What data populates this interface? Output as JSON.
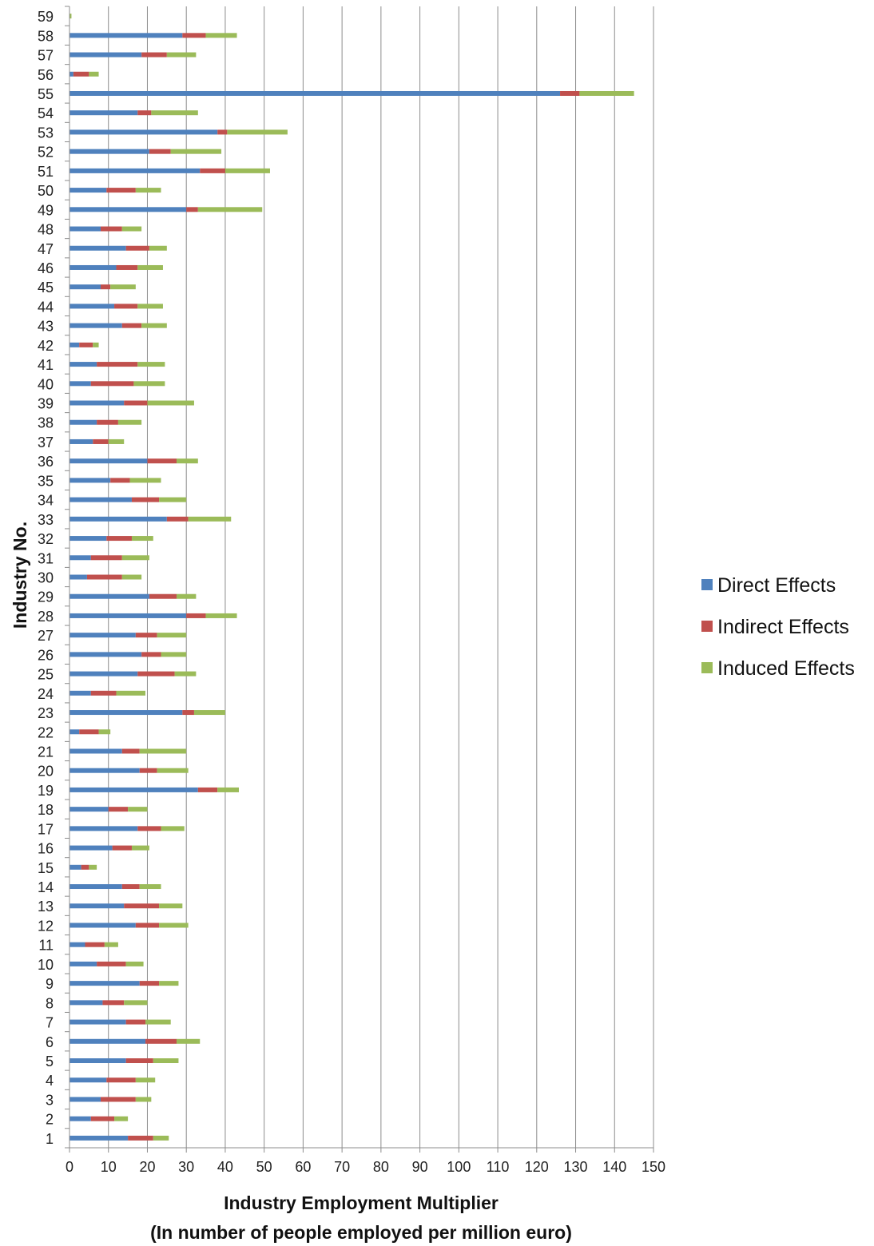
{
  "chart_data": {
    "type": "bar",
    "orientation": "horizontal",
    "stacked": true,
    "xlabel": "Industry Employment Multiplier",
    "xlabel_sub": "(In number of people employed per million euro)",
    "ylabel": "Industry No.",
    "xlim": [
      0,
      150
    ],
    "x_ticks": [
      0,
      10,
      20,
      30,
      40,
      50,
      60,
      70,
      80,
      90,
      100,
      110,
      120,
      130,
      140,
      150
    ],
    "grid": "vertical",
    "legend_position": "right",
    "categories": [
      "1",
      "2",
      "3",
      "4",
      "5",
      "6",
      "7",
      "8",
      "9",
      "10",
      "11",
      "12",
      "13",
      "14",
      "15",
      "16",
      "17",
      "18",
      "19",
      "20",
      "21",
      "22",
      "23",
      "24",
      "25",
      "26",
      "27",
      "28",
      "29",
      "30",
      "31",
      "32",
      "33",
      "34",
      "35",
      "36",
      "37",
      "38",
      "39",
      "40",
      "41",
      "42",
      "43",
      "44",
      "45",
      "46",
      "47",
      "48",
      "49",
      "50",
      "51",
      "52",
      "53",
      "54",
      "55",
      "56",
      "57",
      "58",
      "59"
    ],
    "series": [
      {
        "name": "Direct Effects",
        "color": "#4F81BD",
        "values": [
          15,
          5.5,
          8,
          9.5,
          14.5,
          19.5,
          14.5,
          8.5,
          18,
          7,
          4,
          17,
          14,
          13.5,
          3,
          11,
          17.5,
          10,
          33,
          18,
          13.5,
          2.5,
          29,
          5.5,
          17.5,
          18.5,
          17,
          30,
          20.5,
          4.5,
          5.5,
          9.5,
          25,
          16,
          10.5,
          20,
          6,
          7,
          14,
          5.5,
          7,
          2.5,
          13.5,
          11.5,
          8,
          12,
          14.5,
          8,
          30,
          9.5,
          33.5,
          20.5,
          38,
          17.5,
          126,
          1,
          18.5,
          29,
          0
        ]
      },
      {
        "name": "Indirect Effects",
        "color": "#C0504D",
        "values": [
          6.5,
          6,
          9,
          7.5,
          7,
          8,
          5,
          5.5,
          5,
          7.5,
          5,
          6,
          9,
          4.5,
          2,
          5,
          6,
          5,
          5,
          4.5,
          4.5,
          5,
          3,
          6.5,
          9.5,
          5,
          5.5,
          5,
          7,
          9,
          8,
          6.5,
          5.5,
          7,
          5,
          7.5,
          4,
          5.5,
          6,
          11,
          10.5,
          3.5,
          5,
          6,
          2.5,
          5.5,
          6,
          5.5,
          3,
          7.5,
          6.5,
          5.5,
          2.5,
          3.5,
          5,
          4,
          6.5,
          6,
          0
        ]
      },
      {
        "name": "Induced Effects",
        "color": "#9BBB59",
        "values": [
          4,
          3.5,
          4,
          5,
          6.5,
          6,
          6.5,
          6,
          5,
          4.5,
          3.5,
          7.5,
          6,
          5.5,
          2,
          4.5,
          6,
          5,
          5.5,
          8,
          12,
          3,
          8,
          7.5,
          5.5,
          6.5,
          7.5,
          8,
          5,
          5,
          7,
          5.5,
          11,
          7,
          8,
          5.5,
          4,
          6,
          12,
          8,
          7,
          1.5,
          6.5,
          6.5,
          6.5,
          6.5,
          4.5,
          5,
          16.5,
          6.5,
          11.5,
          13,
          15.5,
          12,
          14,
          2.5,
          7.5,
          8,
          0.5
        ]
      }
    ]
  }
}
